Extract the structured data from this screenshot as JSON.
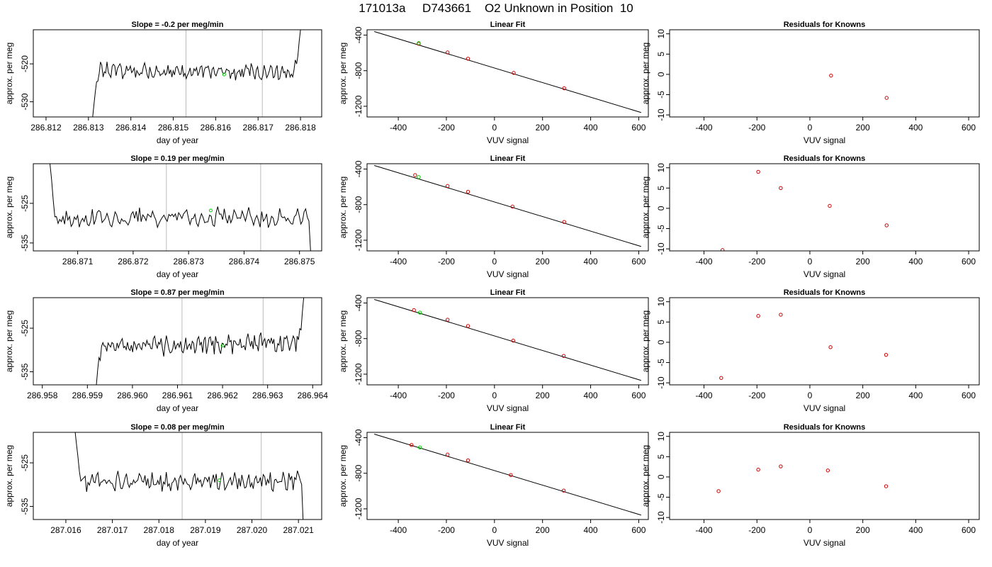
{
  "title": "171013a     D743661    O2 Unknown in Position  10",
  "colors": {
    "line": "#000000",
    "known": "#cc0000",
    "unknown": "#00cc00",
    "vline": "#bbbbbb"
  },
  "chart_data": [
    {
      "type": "line",
      "panel": "timeseries",
      "row": 0,
      "title": "Slope =  -0.2  per meg/min",
      "xlabel": "day of year",
      "ylabel": "approx. per meg",
      "xlim": [
        286.8117,
        286.8185
      ],
      "ylim": [
        -534,
        -511
      ],
      "xticks": [
        286.812,
        286.813,
        286.814,
        286.815,
        286.816,
        286.817,
        286.818
      ],
      "xtick_labels": [
        "286.812",
        "286.813",
        "286.814",
        "286.815",
        "286.816",
        "286.817",
        "286.818"
      ],
      "yticks": [
        -520,
        -530
      ],
      "ytick_labels": [
        "-520",
        "-530"
      ],
      "vlines": [
        286.8153,
        286.8171
      ],
      "unknown_point": {
        "x": 286.8162,
        "y": -522.8
      },
      "x_range": [
        286.8131,
        286.818
      ],
      "base": -522,
      "amp": 1.6,
      "start": -534,
      "start_len": 0.0002,
      "trend": -0.6,
      "end": -511,
      "end_len": 0.0002,
      "seed": 1
    },
    {
      "type": "scatter",
      "panel": "fit",
      "row": 0,
      "title": "Linear Fit",
      "xlabel": "VUV signal",
      "ylabel": "approx. per meg",
      "xlim": [
        -530,
        640
      ],
      "ylim": [
        -1320,
        -340
      ],
      "xticks": [
        -400,
        -200,
        0,
        200,
        400,
        600
      ],
      "xtick_labels": [
        "-400",
        "-200",
        "0",
        "200",
        "400",
        "600"
      ],
      "yticks": [
        -400,
        -800,
        -1200
      ],
      "ytick_labels": [
        "-400",
        "-800",
        "-1200"
      ],
      "fit_line": {
        "x": [
          -500,
          610
        ],
        "y": [
          -360,
          -1270
        ]
      },
      "known_points": [
        [
          -315,
          -498
        ],
        [
          -195,
          -595
        ],
        [
          -110,
          -665
        ],
        [
          80,
          -825
        ],
        [
          290,
          -998
        ]
      ],
      "unknown_points": [
        [
          -315,
          -490
        ]
      ]
    },
    {
      "type": "scatter",
      "panel": "residuals",
      "row": 0,
      "title": "Residuals for Knowns",
      "xlabel": "VUV signal",
      "ylabel": "approx. per meg",
      "xlim": [
        -530,
        640
      ],
      "ylim": [
        -10.5,
        11
      ],
      "xticks": [
        -400,
        -200,
        0,
        200,
        400,
        600
      ],
      "xtick_labels": [
        "-400",
        "-200",
        "0",
        "200",
        "400",
        "600"
      ],
      "yticks": [
        10,
        5,
        0,
        -5,
        -10
      ],
      "ytick_labels": [
        "10",
        "5",
        "0",
        "-5",
        "-10"
      ],
      "known_points": [
        [
          80,
          -0.3
        ],
        [
          290,
          -5.8
        ]
      ]
    },
    {
      "type": "line",
      "panel": "timeseries",
      "row": 1,
      "title": "Slope =  0.19  per meg/min",
      "xlabel": "day of year",
      "ylabel": "approx. per meg",
      "xlim": [
        286.8702,
        286.8754
      ],
      "ylim": [
        -537,
        -515
      ],
      "xticks": [
        286.871,
        286.872,
        286.873,
        286.874,
        286.875
      ],
      "xtick_labels": [
        "286.871",
        "286.872",
        "286.873",
        "286.874",
        "286.875"
      ],
      "yticks": [
        -525,
        -535
      ],
      "ytick_labels": [
        "-525",
        "-535"
      ],
      "vlines": [
        286.8726,
        286.8743
      ],
      "unknown_point": {
        "x": 286.8734,
        "y": -526.8
      },
      "x_range": [
        286.8705,
        286.8752
      ],
      "base": -528.5,
      "amp": 1.9,
      "start": -515,
      "start_len": 0.00015,
      "trend": 0.4,
      "end": -537,
      "end_len": 5e-05,
      "seed": 2
    },
    {
      "type": "scatter",
      "panel": "fit",
      "row": 1,
      "title": "Linear Fit",
      "xlabel": "VUV signal",
      "ylabel": "approx. per meg",
      "xlim": [
        -530,
        640
      ],
      "ylim": [
        -1320,
        -340
      ],
      "xticks": [
        -400,
        -200,
        0,
        200,
        400,
        600
      ],
      "xtick_labels": [
        "-400",
        "-200",
        "0",
        "200",
        "400",
        "600"
      ],
      "yticks": [
        -400,
        -800,
        -1200
      ],
      "ytick_labels": [
        "-400",
        "-800",
        "-1200"
      ],
      "fit_line": {
        "x": [
          -500,
          610
        ],
        "y": [
          -360,
          -1270
        ]
      },
      "known_points": [
        [
          -330,
          -468
        ],
        [
          -195,
          -590
        ],
        [
          -110,
          -655
        ],
        [
          75,
          -822
        ],
        [
          290,
          -995
        ]
      ],
      "unknown_points": [
        [
          -315,
          -490
        ]
      ]
    },
    {
      "type": "scatter",
      "panel": "residuals",
      "row": 1,
      "title": "Residuals for Knowns",
      "xlabel": "VUV signal",
      "ylabel": "approx. per meg",
      "xlim": [
        -530,
        640
      ],
      "ylim": [
        -10.5,
        11
      ],
      "xticks": [
        -400,
        -200,
        0,
        200,
        400,
        600
      ],
      "xtick_labels": [
        "-400",
        "-200",
        "0",
        "200",
        "400",
        "600"
      ],
      "yticks": [
        10,
        5,
        0,
        -5,
        -10
      ],
      "ytick_labels": [
        "10",
        "5",
        "0",
        "-5",
        "-10"
      ],
      "known_points": [
        [
          -330,
          -10.3
        ],
        [
          -195,
          9.0
        ],
        [
          -110,
          5.0
        ],
        [
          75,
          0.6
        ],
        [
          290,
          -4.2
        ]
      ]
    },
    {
      "type": "line",
      "panel": "timeseries",
      "row": 2,
      "title": "Slope =  0.87  per meg/min",
      "xlabel": "day of year",
      "ylabel": "approx. per meg",
      "xlim": [
        286.9578,
        286.9642
      ],
      "ylim": [
        -538,
        -518
      ],
      "xticks": [
        286.958,
        286.959,
        286.96,
        286.961,
        286.962,
        286.963,
        286.964
      ],
      "xtick_labels": [
        "286.958",
        "286.959",
        "286.960",
        "286.961",
        "286.962",
        "286.963",
        "286.964"
      ],
      "yticks": [
        -525,
        -535
      ],
      "ytick_labels": [
        "-525",
        "-535"
      ],
      "vlines": [
        286.9611,
        286.9629
      ],
      "unknown_point": {
        "x": 286.962,
        "y": -529
      },
      "x_range": [
        286.9592,
        286.9638
      ],
      "base": -528.8,
      "amp": 1.7,
      "start": -538,
      "start_len": 0.00015,
      "trend": 1.2,
      "end": -518,
      "end_len": 0.00015,
      "seed": 3
    },
    {
      "type": "scatter",
      "panel": "fit",
      "row": 2,
      "title": "Linear Fit",
      "xlabel": "VUV signal",
      "ylabel": "approx. per meg",
      "xlim": [
        -530,
        640
      ],
      "ylim": [
        -1320,
        -340
      ],
      "xticks": [
        -400,
        -200,
        0,
        200,
        400,
        600
      ],
      "xtick_labels": [
        "-400",
        "-200",
        "0",
        "200",
        "400",
        "600"
      ],
      "yticks": [
        -400,
        -800,
        -1200
      ],
      "ytick_labels": [
        "-400",
        "-800",
        "-1200"
      ],
      "fit_line": {
        "x": [
          -500,
          610
        ],
        "y": [
          -360,
          -1270
        ]
      },
      "known_points": [
        [
          -335,
          -480
        ],
        [
          -195,
          -588
        ],
        [
          -110,
          -658
        ],
        [
          78,
          -823
        ],
        [
          288,
          -995
        ]
      ],
      "unknown_points": [
        [
          -310,
          -508
        ]
      ]
    },
    {
      "type": "scatter",
      "panel": "residuals",
      "row": 2,
      "title": "Residuals for Knowns",
      "xlabel": "VUV signal",
      "ylabel": "approx. per meg",
      "xlim": [
        -530,
        640
      ],
      "ylim": [
        -10.5,
        11
      ],
      "xticks": [
        -400,
        -200,
        0,
        200,
        400,
        600
      ],
      "xtick_labels": [
        "-400",
        "-200",
        "0",
        "200",
        "400",
        "600"
      ],
      "yticks": [
        10,
        5,
        0,
        -5,
        -10
      ],
      "ytick_labels": [
        "10",
        "5",
        "0",
        "-5",
        "-10"
      ],
      "known_points": [
        [
          -335,
          -8.8
        ],
        [
          -195,
          6.5
        ],
        [
          -110,
          6.8
        ],
        [
          78,
          -1.2
        ],
        [
          288,
          -3.1
        ]
      ]
    },
    {
      "type": "line",
      "panel": "timeseries",
      "row": 3,
      "title": "Slope =  0.08  per meg/min",
      "xlabel": "day of year",
      "ylabel": "approx. per meg",
      "xlim": [
        287.0153,
        287.0215
      ],
      "ylim": [
        -538,
        -518
      ],
      "xticks": [
        287.016,
        287.017,
        287.018,
        287.019,
        287.02,
        287.021
      ],
      "xtick_labels": [
        "287.016",
        "287.017",
        "287.018",
        "287.019",
        "287.020",
        "287.021"
      ],
      "yticks": [
        -525,
        -535
      ],
      "ytick_labels": [
        "-525",
        "-535"
      ],
      "vlines": [
        287.0185,
        287.0202
      ],
      "unknown_point": {
        "x": 287.0193,
        "y": -529
      },
      "x_range": [
        287.0162,
        287.0211
      ],
      "base": -529.3,
      "amp": 1.7,
      "start": -518,
      "start_len": 0.0002,
      "trend": 0.2,
      "end": -538,
      "end_len": 5e-05,
      "seed": 4
    },
    {
      "type": "scatter",
      "panel": "fit",
      "row": 3,
      "title": "Linear Fit",
      "xlabel": "VUV signal",
      "ylabel": "approx. per meg",
      "xlim": [
        -530,
        640
      ],
      "ylim": [
        -1320,
        -340
      ],
      "xticks": [
        -400,
        -200,
        0,
        200,
        400,
        600
      ],
      "xtick_labels": [
        "-400",
        "-200",
        "0",
        "200",
        "400",
        "600"
      ],
      "yticks": [
        -400,
        -800,
        -1200
      ],
      "ytick_labels": [
        "-400",
        "-800",
        "-1200"
      ],
      "fit_line": {
        "x": [
          -500,
          610
        ],
        "y": [
          -360,
          -1270
        ]
      },
      "known_points": [
        [
          -345,
          -482
        ],
        [
          -195,
          -590
        ],
        [
          -110,
          -655
        ],
        [
          68,
          -820
        ],
        [
          288,
          -995
        ]
      ],
      "unknown_points": [
        [
          -310,
          -510
        ]
      ]
    },
    {
      "type": "scatter",
      "panel": "residuals",
      "row": 3,
      "title": "Residuals for Knowns",
      "xlabel": "VUV signal",
      "ylabel": "approx. per meg",
      "xlim": [
        -530,
        640
      ],
      "ylim": [
        -10.5,
        11
      ],
      "xticks": [
        -400,
        -200,
        0,
        200,
        400,
        600
      ],
      "xtick_labels": [
        "-400",
        "-200",
        "0",
        "200",
        "400",
        "600"
      ],
      "yticks": [
        10,
        5,
        0,
        -5,
        -10
      ],
      "ytick_labels": [
        "10",
        "5",
        "0",
        "-5",
        "-10"
      ],
      "known_points": [
        [
          -345,
          -3.5
        ],
        [
          -195,
          1.8
        ],
        [
          -110,
          2.6
        ],
        [
          68,
          1.6
        ],
        [
          288,
          -2.3
        ]
      ]
    }
  ]
}
